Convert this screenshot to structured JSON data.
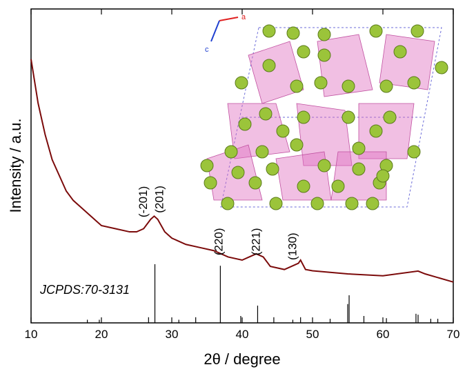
{
  "chart_data": {
    "type": "line",
    "x_label": "2θ / degree",
    "y_label": "Intensity / a.u.",
    "xlim": [
      10,
      70
    ],
    "xticks": [
      10,
      20,
      30,
      40,
      50,
      60,
      70
    ],
    "ylim": [
      0,
      100
    ],
    "series": [
      {
        "color": "#7b0a0a",
        "x": [
          10,
          11,
          12,
          13,
          14,
          15,
          16,
          17,
          18,
          19,
          20,
          22,
          24,
          25,
          26,
          27,
          27.5,
          28,
          29,
          30,
          32,
          34,
          36,
          38,
          40,
          41,
          42,
          43,
          44,
          46,
          48,
          48.3,
          49,
          50,
          55,
          60,
          65,
          66,
          70
        ],
        "values": [
          84,
          70,
          60,
          52,
          47,
          42,
          39,
          37,
          35,
          33,
          31,
          30,
          29,
          29,
          30,
          33,
          34,
          33,
          29,
          27,
          25,
          24,
          23,
          21,
          20,
          21,
          22,
          21,
          18,
          17,
          19,
          20,
          17,
          16.6,
          15.6,
          15,
          16.5,
          15.6,
          13
        ]
      }
    ],
    "reference": {
      "label": "JCPDS:70-3131",
      "color": "#000000",
      "x": [
        18,
        19.7,
        26.7,
        27.6,
        31,
        33.4,
        36.9,
        39.8,
        42.2,
        44.5,
        47.2,
        48.3,
        52.5,
        55.0,
        55.2,
        57.3,
        60.5,
        64.7,
        65.0,
        66.8,
        67.8
      ],
      "values": [
        1,
        1,
        1.8,
        18.7,
        1,
        1.8,
        18.2,
        2.2,
        5.5,
        1.8,
        1,
        1.8,
        1.3,
        6,
        8.8,
        2.2,
        1.5,
        2.9,
        2.6,
        1.3,
        1.3
      ]
    },
    "annotations": [
      {
        "text": "(-201)",
        "x": 25.9,
        "y": 33.6
      },
      {
        "text": "(201)",
        "x": 28.2,
        "y": 35
      },
      {
        "text": "(220)",
        "x": 36.6,
        "y": 21.5
      },
      {
        "text": "(221)",
        "x": 41.9,
        "y": 21.5
      },
      {
        "text": "(130)",
        "x": 47.1,
        "y": 20
      }
    ],
    "inset_axes": [
      "a",
      "c"
    ]
  }
}
